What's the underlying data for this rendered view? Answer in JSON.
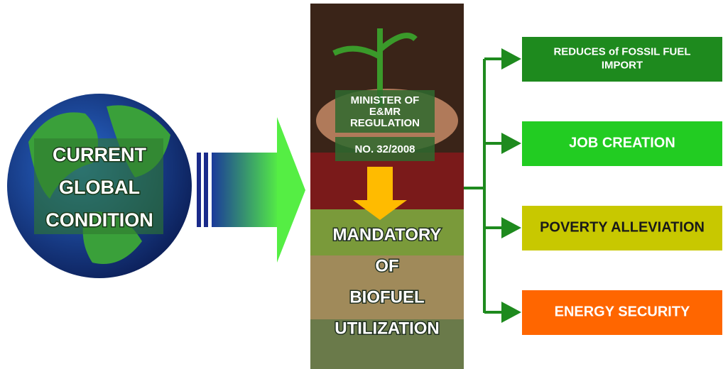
{
  "source": {
    "lines": [
      "CURRENT",
      "GLOBAL",
      "CONDITION"
    ]
  },
  "regulation": {
    "lines": [
      "MINISTER OF",
      "E&MR",
      "REGULATION"
    ],
    "number": "NO. 32/2008"
  },
  "policy": {
    "lines": [
      "MANDATORY",
      "OF",
      "BIOFUEL",
      "UTILIZATION"
    ]
  },
  "outcomes": [
    {
      "lines": [
        "REDUCES of FOSSIL FUEL",
        "IMPORT"
      ]
    },
    {
      "lines": [
        "JOB CREATION"
      ]
    },
    {
      "lines": [
        "POVERTY ALLEVIATION"
      ]
    },
    {
      "lines": [
        "ENERGY SECURITY"
      ]
    }
  ]
}
